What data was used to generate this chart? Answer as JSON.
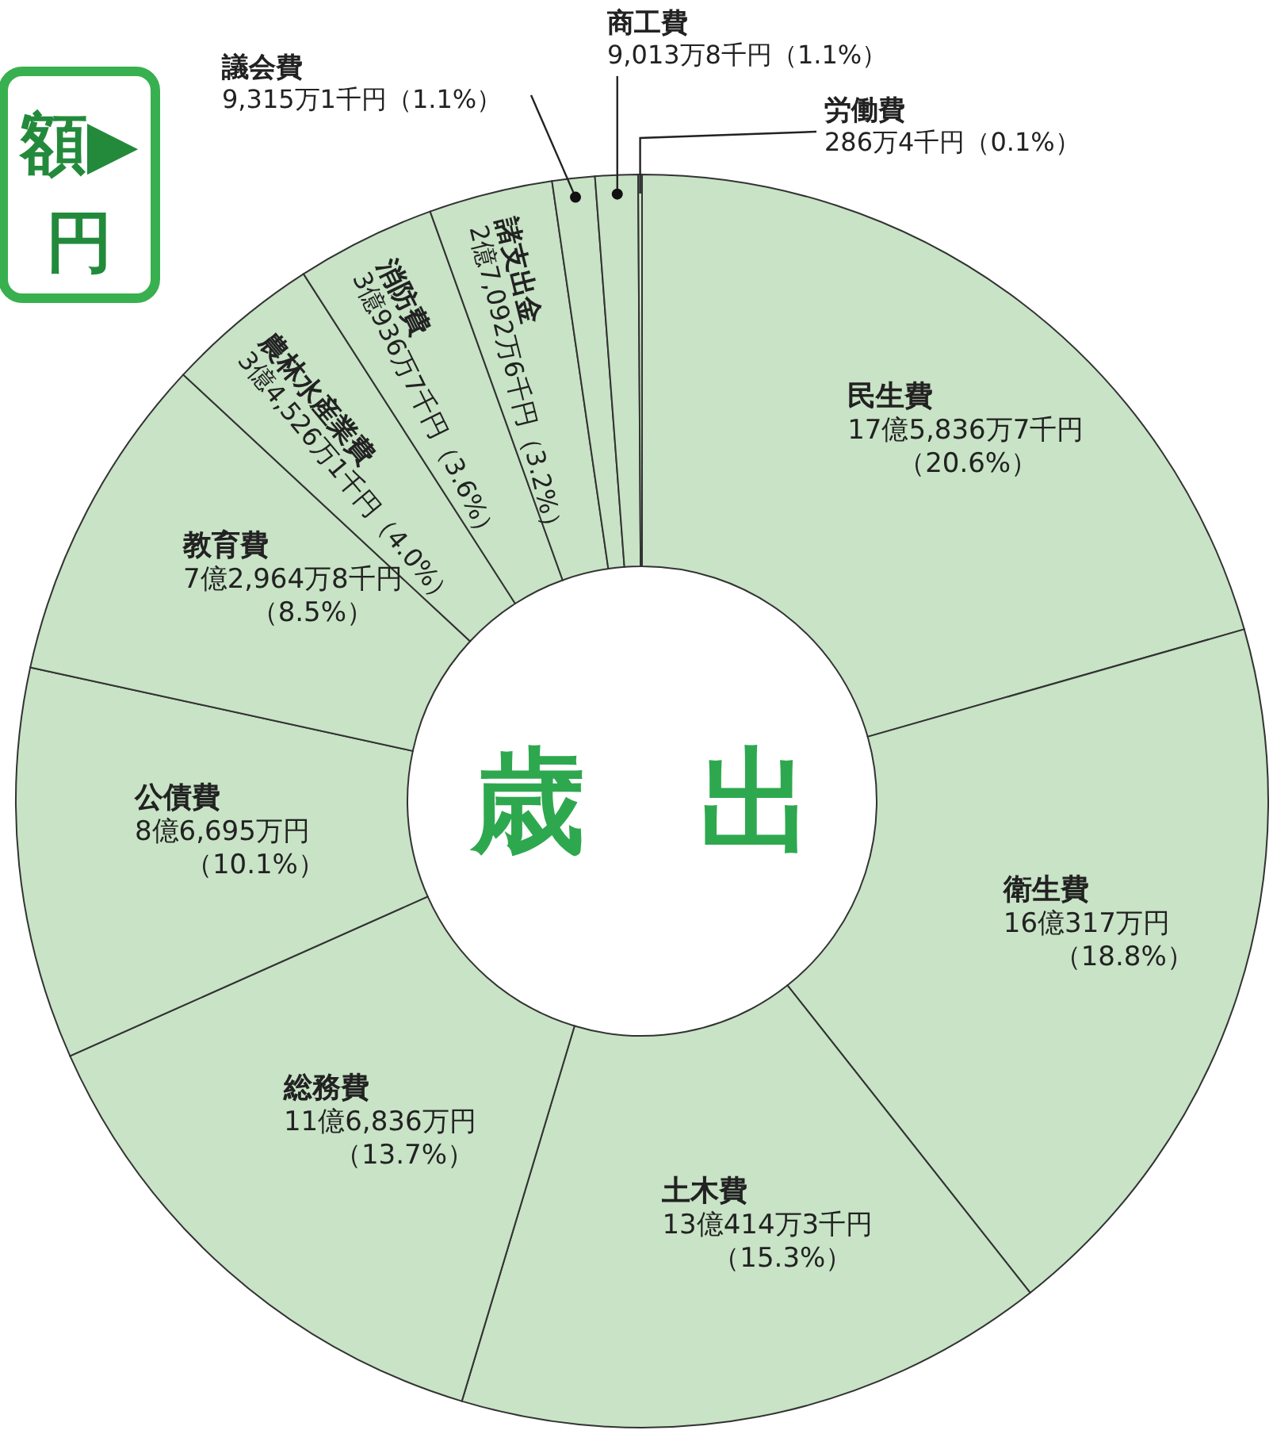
{
  "chart_data": {
    "type": "donut",
    "categories": [
      "民生費",
      "衛生費",
      "土木費",
      "総務費",
      "公債費",
      "教育費",
      "農林水産業費",
      "消防費",
      "諸支出金",
      "議会費",
      "商工費",
      "労働費"
    ],
    "values": [
      20.6,
      18.8,
      15.3,
      13.7,
      10.1,
      8.5,
      4.0,
      3.6,
      3.2,
      1.1,
      1.1,
      0.1
    ],
    "value_labels": [
      "17億5,836万7千円（20.6%）",
      "16億317万円（18.8%）",
      "13億414万3千円（15.3%）",
      "11億6,836万円（13.7%）",
      "8億6,695万円（10.1%）",
      "7億2,964万8千円（8.5%）",
      "3億4,526万1千円（4.0%）",
      "3億936万7千円（3.6%）",
      "2億7,092万6千円（3.2%）",
      "9,315万1千円（1.1%）",
      "9,013万8千円（1.1%）",
      "286万4千円（0.1%）"
    ],
    "colors": [
      "#c8e3c6",
      "#c8e3c6",
      "#c8e3c6",
      "#c8e3c6",
      "#c8e3c6",
      "#c8e3c6",
      "#c8e3c6",
      "#c8e3c6",
      "#c8e3c6",
      "#c8e3c6",
      "#c8e3c6",
      "#c8e3c6"
    ],
    "annotations": [
      "歳　出",
      "額▶\n円"
    ]
  }
}
